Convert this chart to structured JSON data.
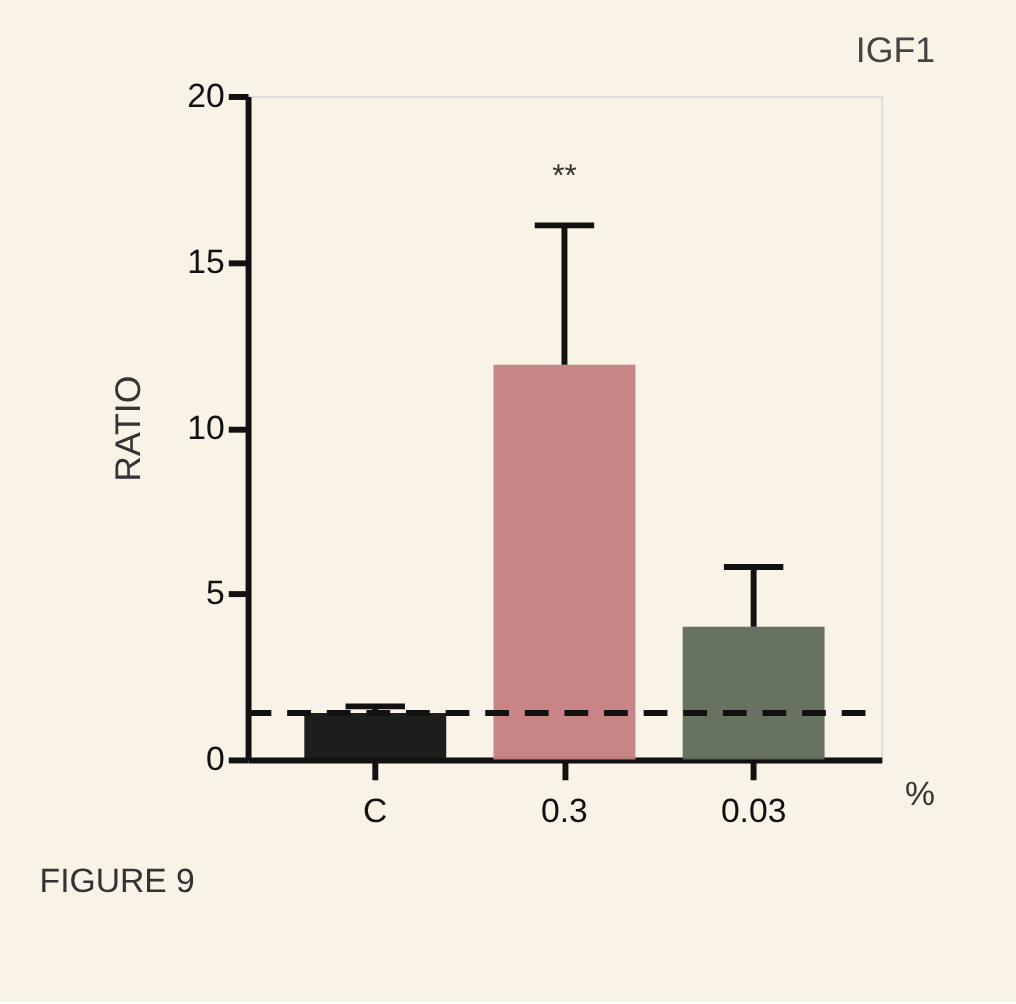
{
  "chart_data": {
    "type": "bar",
    "title": "IGF1",
    "ylabel": "RATIO",
    "categories": [
      "C",
      "0.3",
      "0.03"
    ],
    "values": [
      1.4,
      11.9,
      4.0
    ],
    "colors": [
      "#111111",
      "#c47f80",
      "#5f6a58"
    ],
    "errors": [
      [
        1.4,
        1.6
      ],
      [
        11.9,
        16.1
      ],
      [
        4.0,
        5.8
      ]
    ],
    "ylim": [
      0,
      20
    ],
    "yticks": [
      0,
      5,
      10,
      15,
      20
    ],
    "grid": false,
    "ref_lines": [
      {
        "axis": "y",
        "value": 1.4,
        "line_style": "dashed",
        "color": "#111111"
      }
    ],
    "annotations": [
      "**",
      "%",
      "FIGURE 9"
    ]
  }
}
